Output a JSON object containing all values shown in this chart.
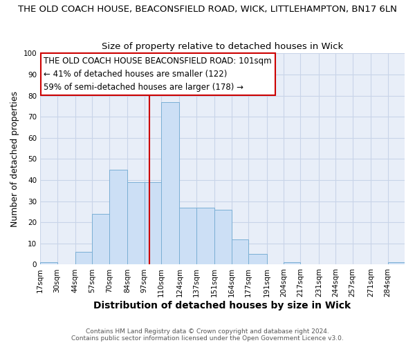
{
  "title": "THE OLD COACH HOUSE, BEACONSFIELD ROAD, WICK, LITTLEHAMPTON, BN17 6LN",
  "subtitle": "Size of property relative to detached houses in Wick",
  "xlabel": "Distribution of detached houses by size in Wick",
  "ylabel": "Number of detached properties",
  "bin_labels": [
    "17sqm",
    "30sqm",
    "44sqm",
    "57sqm",
    "70sqm",
    "84sqm",
    "97sqm",
    "110sqm",
    "124sqm",
    "137sqm",
    "151sqm",
    "164sqm",
    "177sqm",
    "191sqm",
    "204sqm",
    "217sqm",
    "231sqm",
    "244sqm",
    "257sqm",
    "271sqm",
    "284sqm"
  ],
  "bin_edges": [
    17,
    30,
    44,
    57,
    70,
    84,
    97,
    110,
    124,
    137,
    151,
    164,
    177,
    191,
    204,
    217,
    231,
    244,
    257,
    271,
    284
  ],
  "bar_heights": [
    1,
    0,
    6,
    24,
    45,
    39,
    39,
    77,
    27,
    27,
    26,
    12,
    5,
    0,
    1,
    0,
    0,
    0,
    0,
    0,
    1
  ],
  "bar_color": "#ccdff5",
  "bar_edge_color": "#7aafd4",
  "ylim": [
    0,
    100
  ],
  "yticks": [
    0,
    10,
    20,
    30,
    40,
    50,
    60,
    70,
    80,
    90,
    100
  ],
  "vline_x": 101,
  "vline_color": "#cc0000",
  "annotation_line1": "THE OLD COACH HOUSE BEACONSFIELD ROAD: 101sqm",
  "annotation_line2": "← 41% of detached houses are smaller (122)",
  "annotation_line3": "59% of semi-detached houses are larger (178) →",
  "annotation_box_color": "#cc0000",
  "plot_bg_color": "#e8eef8",
  "fig_bg_color": "#ffffff",
  "grid_color": "#c8d4e8",
  "footer_text": "Contains HM Land Registry data © Crown copyright and database right 2024.\nContains public sector information licensed under the Open Government Licence v3.0.",
  "title_fontsize": 9.5,
  "subtitle_fontsize": 9.5,
  "xlabel_fontsize": 10,
  "ylabel_fontsize": 9,
  "annotation_fontsize": 8.5,
  "tick_fontsize": 7.5,
  "footer_fontsize": 6.5
}
